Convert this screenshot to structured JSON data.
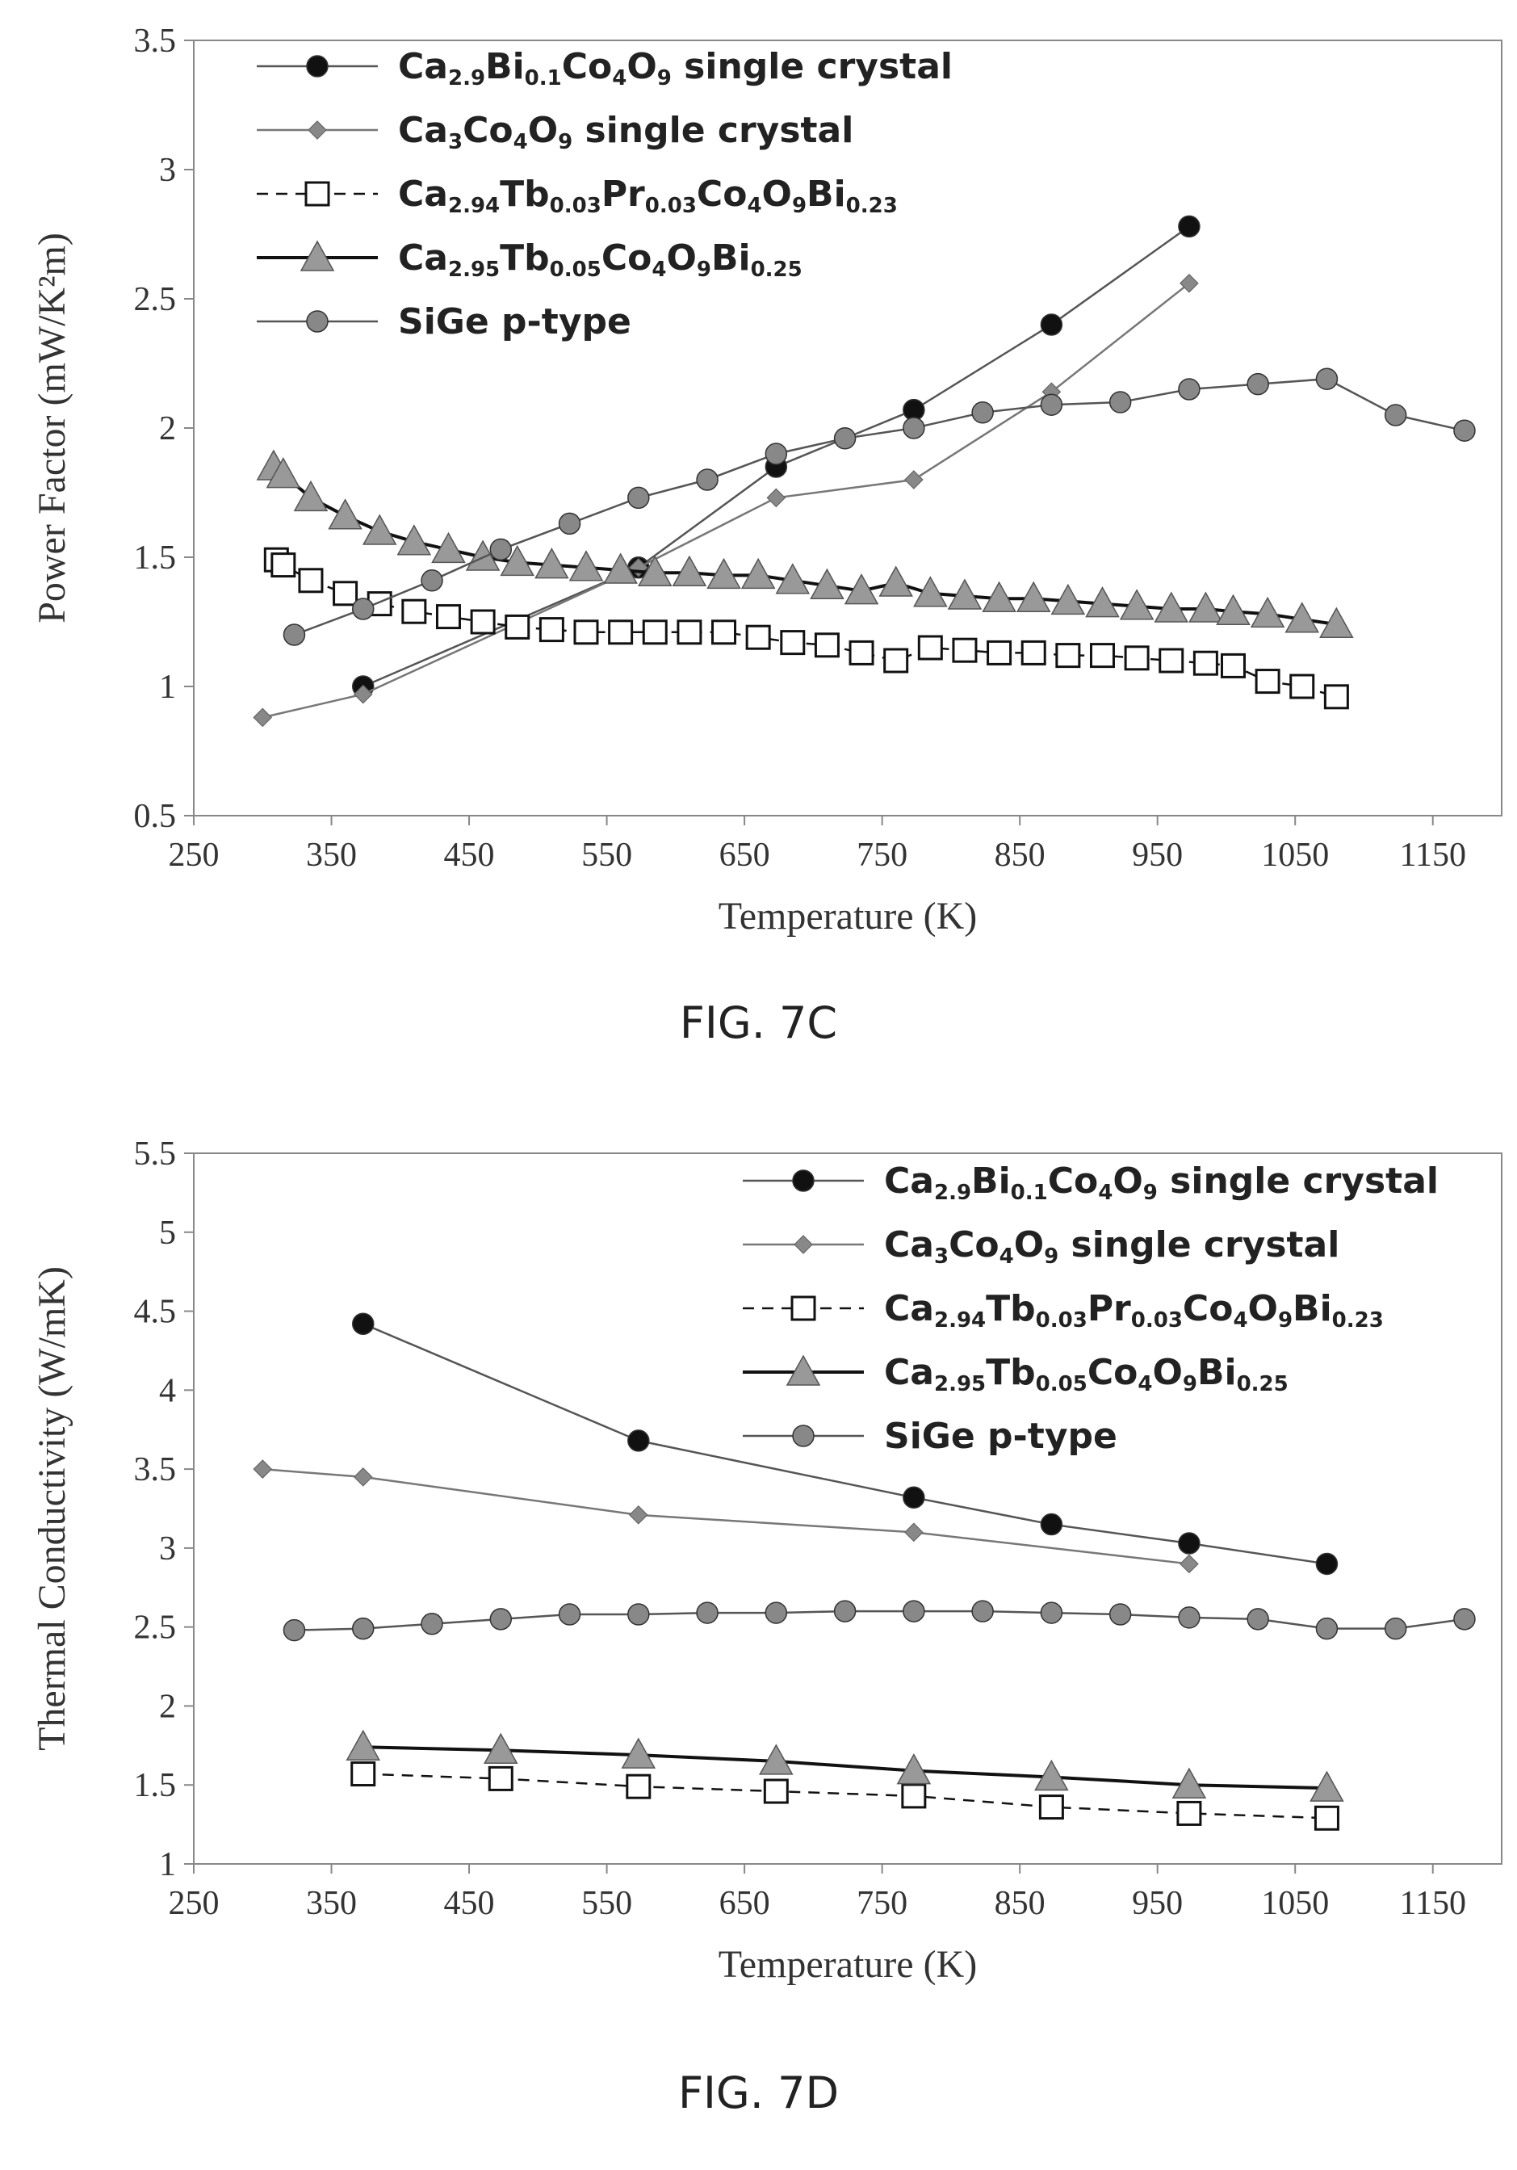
{
  "legend_labels": [
    [
      [
        "Ca",
        ""
      ],
      [
        "2.9",
        "sub"
      ],
      [
        "Bi",
        ""
      ],
      [
        "0.1",
        "sub"
      ],
      [
        "Co",
        ""
      ],
      [
        "4",
        "sub"
      ],
      [
        "O",
        ""
      ],
      [
        "9",
        "sub"
      ],
      [
        " single crystal",
        ""
      ]
    ],
    [
      [
        "Ca",
        ""
      ],
      [
        "3",
        "sub"
      ],
      [
        "Co",
        ""
      ],
      [
        "4",
        "sub"
      ],
      [
        "O",
        ""
      ],
      [
        "9",
        "sub"
      ],
      [
        " single crystal",
        ""
      ]
    ],
    [
      [
        "Ca",
        ""
      ],
      [
        "2.94",
        "sub"
      ],
      [
        "Tb",
        ""
      ],
      [
        "0.03",
        "sub"
      ],
      [
        "Pr",
        ""
      ],
      [
        "0.03",
        "sub"
      ],
      [
        "Co",
        ""
      ],
      [
        "4",
        "sub"
      ],
      [
        "O",
        ""
      ],
      [
        "9",
        "sub"
      ],
      [
        "Bi",
        ""
      ],
      [
        "0.23",
        "sub"
      ]
    ],
    [
      [
        "Ca",
        ""
      ],
      [
        "2.95",
        "sub"
      ],
      [
        "Tb",
        ""
      ],
      [
        "0.05",
        "sub"
      ],
      [
        "Co",
        ""
      ],
      [
        "4",
        "sub"
      ],
      [
        "O",
        ""
      ],
      [
        "9",
        "sub"
      ],
      [
        "Bi",
        ""
      ],
      [
        "0.25",
        "sub"
      ]
    ],
    [
      [
        "SiGe p-type",
        ""
      ]
    ]
  ],
  "chart_data": [
    {
      "id": "fig7c",
      "type": "line",
      "caption": "FIG. 7C",
      "xlabel": "Temperature (K)",
      "ylabel": "Power Factor (mW/K²m)",
      "xlim": [
        250,
        1200
      ],
      "ylim": [
        0.5,
        3.5
      ],
      "xticks": [
        250,
        350,
        450,
        550,
        650,
        750,
        850,
        950,
        1050,
        1150
      ],
      "yticks": [
        0.5,
        1,
        1.5,
        2,
        2.5,
        3,
        3.5
      ],
      "yticks_label": [
        "0.5",
        "1",
        "1.5",
        "2",
        "2.5",
        "3",
        "3.5"
      ],
      "legend_position": "top-left",
      "series": [
        {
          "name": "Ca2.9Bi0.1Co4O9 single crystal",
          "marker": "circle",
          "color": "#111111",
          "line": "#555555",
          "dash": false,
          "x": [
            373,
            573,
            673,
            773,
            873,
            973
          ],
          "y": [
            1.0,
            1.46,
            1.85,
            2.07,
            2.4,
            2.78
          ]
        },
        {
          "name": "Ca3Co4O9 single crystal",
          "marker": "diamond",
          "color": "#888888",
          "line": "#777777",
          "dash": false,
          "x": [
            300,
            373,
            573,
            673,
            773,
            873,
            973
          ],
          "y": [
            0.88,
            0.97,
            1.46,
            1.73,
            1.8,
            2.14,
            2.56
          ]
        },
        {
          "name": "Ca2.94Tb0.03Pr0.03Co4O9Bi0.23",
          "marker": "square",
          "color": "#111111",
          "line": "#111111",
          "dash": true,
          "x": [
            310,
            315,
            335,
            360,
            385,
            410,
            435,
            460,
            485,
            510,
            535,
            560,
            585,
            610,
            635,
            660,
            685,
            710,
            735,
            760,
            785,
            810,
            835,
            860,
            885,
            910,
            935,
            960,
            985,
            1005,
            1030,
            1055,
            1080
          ],
          "y": [
            1.49,
            1.47,
            1.41,
            1.36,
            1.32,
            1.29,
            1.27,
            1.25,
            1.23,
            1.22,
            1.21,
            1.21,
            1.21,
            1.21,
            1.21,
            1.19,
            1.17,
            1.16,
            1.13,
            1.1,
            1.15,
            1.14,
            1.13,
            1.13,
            1.12,
            1.12,
            1.11,
            1.1,
            1.09,
            1.08,
            1.02,
            1.0,
            0.96
          ]
        },
        {
          "name": "Ca2.95Tb0.05Co4O9Bi0.25",
          "marker": "triangle",
          "color": "#999999",
          "line": "#111111",
          "dash": false,
          "x": [
            308,
            315,
            335,
            360,
            385,
            410,
            435,
            460,
            485,
            510,
            535,
            560,
            585,
            610,
            635,
            660,
            685,
            710,
            735,
            760,
            785,
            810,
            835,
            860,
            885,
            910,
            935,
            960,
            985,
            1005,
            1030,
            1055,
            1080
          ],
          "y": [
            1.85,
            1.82,
            1.73,
            1.66,
            1.6,
            1.56,
            1.53,
            1.5,
            1.48,
            1.47,
            1.46,
            1.45,
            1.44,
            1.44,
            1.43,
            1.43,
            1.41,
            1.39,
            1.37,
            1.4,
            1.36,
            1.35,
            1.34,
            1.34,
            1.33,
            1.32,
            1.31,
            1.3,
            1.3,
            1.29,
            1.28,
            1.26,
            1.24
          ]
        },
        {
          "name": "SiGe p-type",
          "marker": "circle",
          "color": "#888888",
          "line": "#555555",
          "dash": false,
          "x": [
            323,
            373,
            423,
            473,
            523,
            573,
            623,
            673,
            723,
            773,
            823,
            873,
            923,
            973,
            1023,
            1073,
            1123,
            1173
          ],
          "y": [
            1.2,
            1.3,
            1.41,
            1.53,
            1.63,
            1.73,
            1.8,
            1.9,
            1.96,
            2.0,
            2.06,
            2.09,
            2.1,
            2.15,
            2.17,
            2.19,
            2.05,
            1.99
          ]
        }
      ]
    },
    {
      "id": "fig7d",
      "type": "line",
      "caption": "FIG. 7D",
      "xlabel": "Temperature (K)",
      "ylabel": "Thermal Conductivity (W/mK)",
      "xlim": [
        250,
        1200
      ],
      "ylim": [
        1,
        5.5
      ],
      "xticks": [
        250,
        350,
        450,
        550,
        650,
        750,
        850,
        950,
        1050,
        1150
      ],
      "yticks": [
        1,
        1.5,
        2,
        2.5,
        3,
        3.5,
        4,
        4.5,
        5,
        5.5
      ],
      "yticks_label": [
        "1",
        "1.5",
        "2",
        "2.5",
        "3",
        "3.5",
        "4",
        "4.5",
        "5",
        "5.5"
      ],
      "legend_position": "top-right",
      "series": [
        {
          "name": "Ca2.9Bi0.1Co4O9 single crystal",
          "marker": "circle",
          "color": "#111111",
          "line": "#555555",
          "dash": false,
          "x": [
            373,
            573,
            773,
            873,
            973,
            1073
          ],
          "y": [
            4.42,
            3.68,
            3.32,
            3.15,
            3.03,
            2.9
          ]
        },
        {
          "name": "Ca3Co4O9 single crystal",
          "marker": "diamond",
          "color": "#888888",
          "line": "#777777",
          "dash": false,
          "x": [
            300,
            373,
            573,
            773,
            973
          ],
          "y": [
            3.5,
            3.45,
            3.21,
            3.1,
            2.9
          ]
        },
        {
          "name": "Ca2.94Tb0.03Pr0.03Co4O9Bi0.23",
          "marker": "square",
          "color": "#111111",
          "line": "#111111",
          "dash": true,
          "x": [
            373,
            473,
            573,
            673,
            773,
            873,
            973,
            1073
          ],
          "y": [
            1.57,
            1.54,
            1.49,
            1.46,
            1.43,
            1.36,
            1.32,
            1.29
          ]
        },
        {
          "name": "Ca2.95Tb0.05Co4O9Bi0.25",
          "marker": "triangle",
          "color": "#999999",
          "line": "#111111",
          "dash": false,
          "x": [
            373,
            473,
            573,
            673,
            773,
            873,
            973,
            1073
          ],
          "y": [
            1.74,
            1.72,
            1.69,
            1.65,
            1.59,
            1.55,
            1.5,
            1.48
          ]
        },
        {
          "name": "SiGe p-type",
          "marker": "circle",
          "color": "#888888",
          "line": "#555555",
          "dash": false,
          "x": [
            323,
            373,
            423,
            473,
            523,
            573,
            623,
            673,
            723,
            773,
            823,
            873,
            923,
            973,
            1023,
            1073,
            1123,
            1173
          ],
          "y": [
            2.48,
            2.49,
            2.52,
            2.55,
            2.58,
            2.58,
            2.59,
            2.59,
            2.6,
            2.6,
            2.6,
            2.59,
            2.58,
            2.56,
            2.55,
            2.49,
            2.49,
            2.55
          ]
        }
      ]
    }
  ]
}
